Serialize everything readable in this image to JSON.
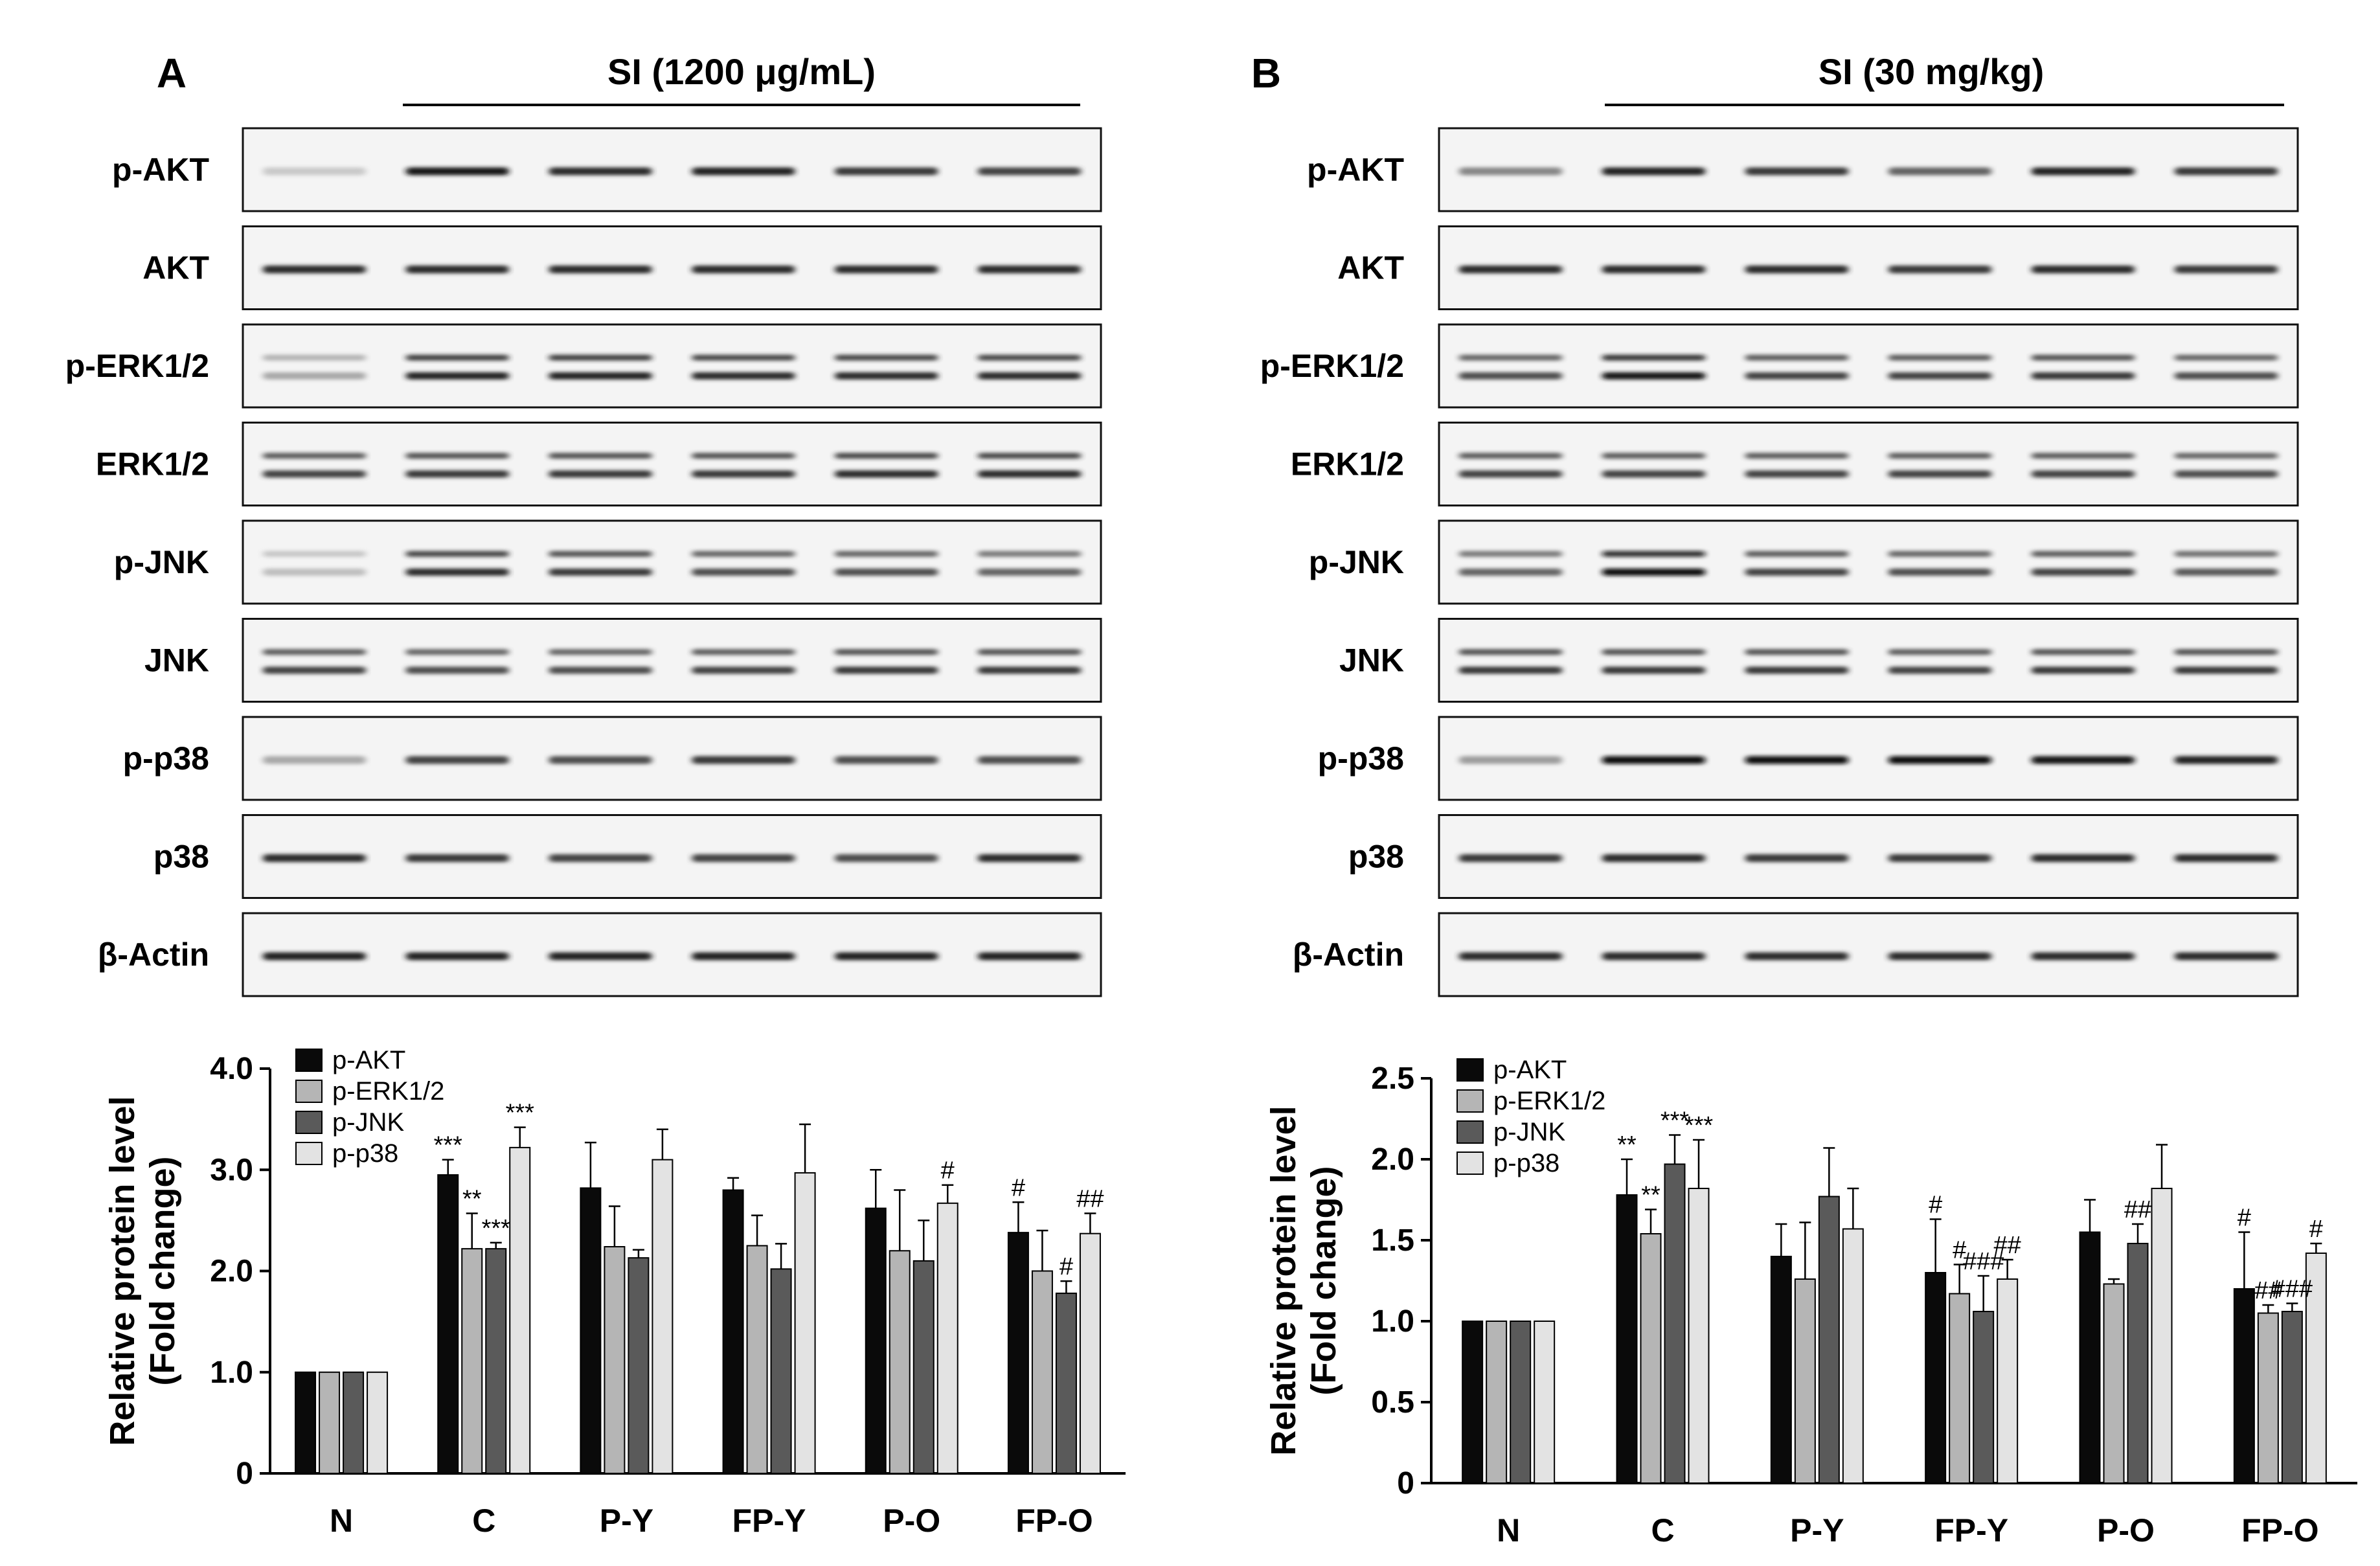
{
  "conditions": {
    "A": {
      "letter": "A",
      "label": "SI (1200 μg/mL)"
    },
    "B": {
      "letter": "B",
      "label": "SI (30 mg/kg)"
    }
  },
  "blots": {
    "labels": [
      "p-AKT",
      "AKT",
      "p-ERK1/2",
      "ERK1/2",
      "p-JNK",
      "JNK",
      "p-p38",
      "p38",
      "β-Actin"
    ],
    "A_intensity": [
      [
        0.15,
        0.95,
        0.85,
        0.9,
        0.8,
        0.75
      ],
      [
        0.85,
        0.85,
        0.85,
        0.85,
        0.85,
        0.85
      ],
      [
        0.3,
        0.9,
        0.9,
        0.85,
        0.85,
        0.85
      ],
      [
        0.75,
        0.8,
        0.8,
        0.8,
        0.85,
        0.85
      ],
      [
        0.2,
        0.85,
        0.8,
        0.7,
        0.7,
        0.6
      ],
      [
        0.75,
        0.7,
        0.7,
        0.75,
        0.8,
        0.8
      ],
      [
        0.3,
        0.75,
        0.7,
        0.8,
        0.7,
        0.7
      ],
      [
        0.85,
        0.8,
        0.75,
        0.75,
        0.7,
        0.85
      ],
      [
        0.9,
        0.9,
        0.9,
        0.9,
        0.9,
        0.9
      ]
    ],
    "B_intensity": [
      [
        0.45,
        0.9,
        0.8,
        0.6,
        0.9,
        0.8
      ],
      [
        0.85,
        0.85,
        0.85,
        0.8,
        0.85,
        0.8
      ],
      [
        0.7,
        0.95,
        0.75,
        0.75,
        0.8,
        0.7
      ],
      [
        0.75,
        0.75,
        0.75,
        0.75,
        0.75,
        0.7
      ],
      [
        0.6,
        1.0,
        0.75,
        0.7,
        0.75,
        0.65
      ],
      [
        0.8,
        0.8,
        0.8,
        0.75,
        0.8,
        0.8
      ],
      [
        0.35,
        1.0,
        1.0,
        1.0,
        0.95,
        0.9
      ],
      [
        0.8,
        0.85,
        0.8,
        0.8,
        0.85,
        0.85
      ],
      [
        0.85,
        0.85,
        0.85,
        0.85,
        0.85,
        0.85
      ]
    ]
  },
  "chart_data": [
    {
      "type": "bar",
      "panel": "A",
      "title": "",
      "xlabel": "",
      "ylabel": "Relative protein level (Fold change)",
      "ylabel_lines": [
        "Relative protein level",
        "(Fold change)"
      ],
      "ylim": [
        0,
        4.0
      ],
      "yticks": [
        0,
        1.0,
        2.0,
        3.0,
        4.0
      ],
      "ytick_labels": [
        "0",
        "1.0",
        "2.0",
        "3.0",
        "4.0"
      ],
      "categories": [
        "N",
        "C",
        "P-Y",
        "FP-Y",
        "P-O",
        "FP-O"
      ],
      "legend": {
        "position": "top-left"
      },
      "series": [
        {
          "name": "p-AKT",
          "color": "#0a0a0a",
          "values": [
            1.0,
            2.95,
            2.82,
            2.8,
            2.62,
            2.38
          ],
          "errors": [
            0,
            0.15,
            0.45,
            0.12,
            0.38,
            0.3
          ]
        },
        {
          "name": "p-ERK1/2",
          "color": "#b5b5b5",
          "values": [
            1.0,
            2.22,
            2.24,
            2.25,
            2.2,
            2.0
          ],
          "errors": [
            0,
            0.35,
            0.4,
            0.3,
            0.6,
            0.4
          ]
        },
        {
          "name": "p-JNK",
          "color": "#5a5a5a",
          "values": [
            1.0,
            2.22,
            2.13,
            2.02,
            2.1,
            1.78
          ],
          "errors": [
            0,
            0.06,
            0.08,
            0.25,
            0.4,
            0.12
          ]
        },
        {
          "name": "p-p38",
          "color": "#e3e3e3",
          "values": [
            1.0,
            3.22,
            3.1,
            2.97,
            2.67,
            2.37
          ],
          "errors": [
            0,
            0.2,
            0.3,
            0.48,
            0.18,
            0.2
          ]
        }
      ],
      "annotations": [
        {
          "category": 1,
          "series": 0,
          "text": "***"
        },
        {
          "category": 1,
          "series": 1,
          "text": "**"
        },
        {
          "category": 1,
          "series": 2,
          "text": "***"
        },
        {
          "category": 1,
          "series": 3,
          "text": "***"
        },
        {
          "category": 4,
          "series": 3,
          "text": "#"
        },
        {
          "category": 5,
          "series": 0,
          "text": "#"
        },
        {
          "category": 5,
          "series": 2,
          "text": "#"
        },
        {
          "category": 5,
          "series": 3,
          "text": "##"
        }
      ]
    },
    {
      "type": "bar",
      "panel": "B",
      "title": "",
      "xlabel": "",
      "ylabel": "Relative protein level (Fold change)",
      "ylabel_lines": [
        "Relative protein level",
        "(Fold change)"
      ],
      "ylim": [
        0,
        2.5
      ],
      "yticks": [
        0,
        0.5,
        1.0,
        1.5,
        2.0,
        2.5
      ],
      "ytick_labels": [
        "0",
        "0.5",
        "1.0",
        "1.5",
        "2.0",
        "2.5"
      ],
      "categories": [
        "N",
        "C",
        "P-Y",
        "FP-Y",
        "P-O",
        "FP-O"
      ],
      "legend": {
        "position": "top-left"
      },
      "series": [
        {
          "name": "p-AKT",
          "color": "#0a0a0a",
          "values": [
            1.0,
            1.78,
            1.4,
            1.3,
            1.55,
            1.2
          ],
          "errors": [
            0,
            0.22,
            0.2,
            0.33,
            0.2,
            0.35
          ]
        },
        {
          "name": "p-ERK1/2",
          "color": "#b5b5b5",
          "values": [
            1.0,
            1.54,
            1.26,
            1.17,
            1.23,
            1.05
          ],
          "errors": [
            0,
            0.15,
            0.35,
            0.18,
            0.03,
            0.05
          ]
        },
        {
          "name": "p-JNK",
          "color": "#5a5a5a",
          "values": [
            1.0,
            1.97,
            1.77,
            1.06,
            1.48,
            1.06
          ],
          "errors": [
            0,
            0.18,
            0.3,
            0.22,
            0.12,
            0.05
          ]
        },
        {
          "name": "p-p38",
          "color": "#e3e3e3",
          "values": [
            1.0,
            1.82,
            1.57,
            1.26,
            1.82,
            1.42
          ],
          "errors": [
            0,
            0.3,
            0.25,
            0.12,
            0.27,
            0.06
          ]
        }
      ],
      "annotations": [
        {
          "category": 1,
          "series": 0,
          "text": "**"
        },
        {
          "category": 1,
          "series": 1,
          "text": "**"
        },
        {
          "category": 1,
          "series": 2,
          "text": "***"
        },
        {
          "category": 1,
          "series": 3,
          "text": "***"
        },
        {
          "category": 3,
          "series": 0,
          "text": "#"
        },
        {
          "category": 3,
          "series": 1,
          "text": "#"
        },
        {
          "category": 3,
          "series": 2,
          "text": "###"
        },
        {
          "category": 3,
          "series": 3,
          "text": "##"
        },
        {
          "category": 4,
          "series": 2,
          "text": "##"
        },
        {
          "category": 5,
          "series": 0,
          "text": "#"
        },
        {
          "category": 5,
          "series": 1,
          "text": "##"
        },
        {
          "category": 5,
          "series": 2,
          "text": "###"
        },
        {
          "category": 5,
          "series": 3,
          "text": "#"
        }
      ]
    }
  ]
}
